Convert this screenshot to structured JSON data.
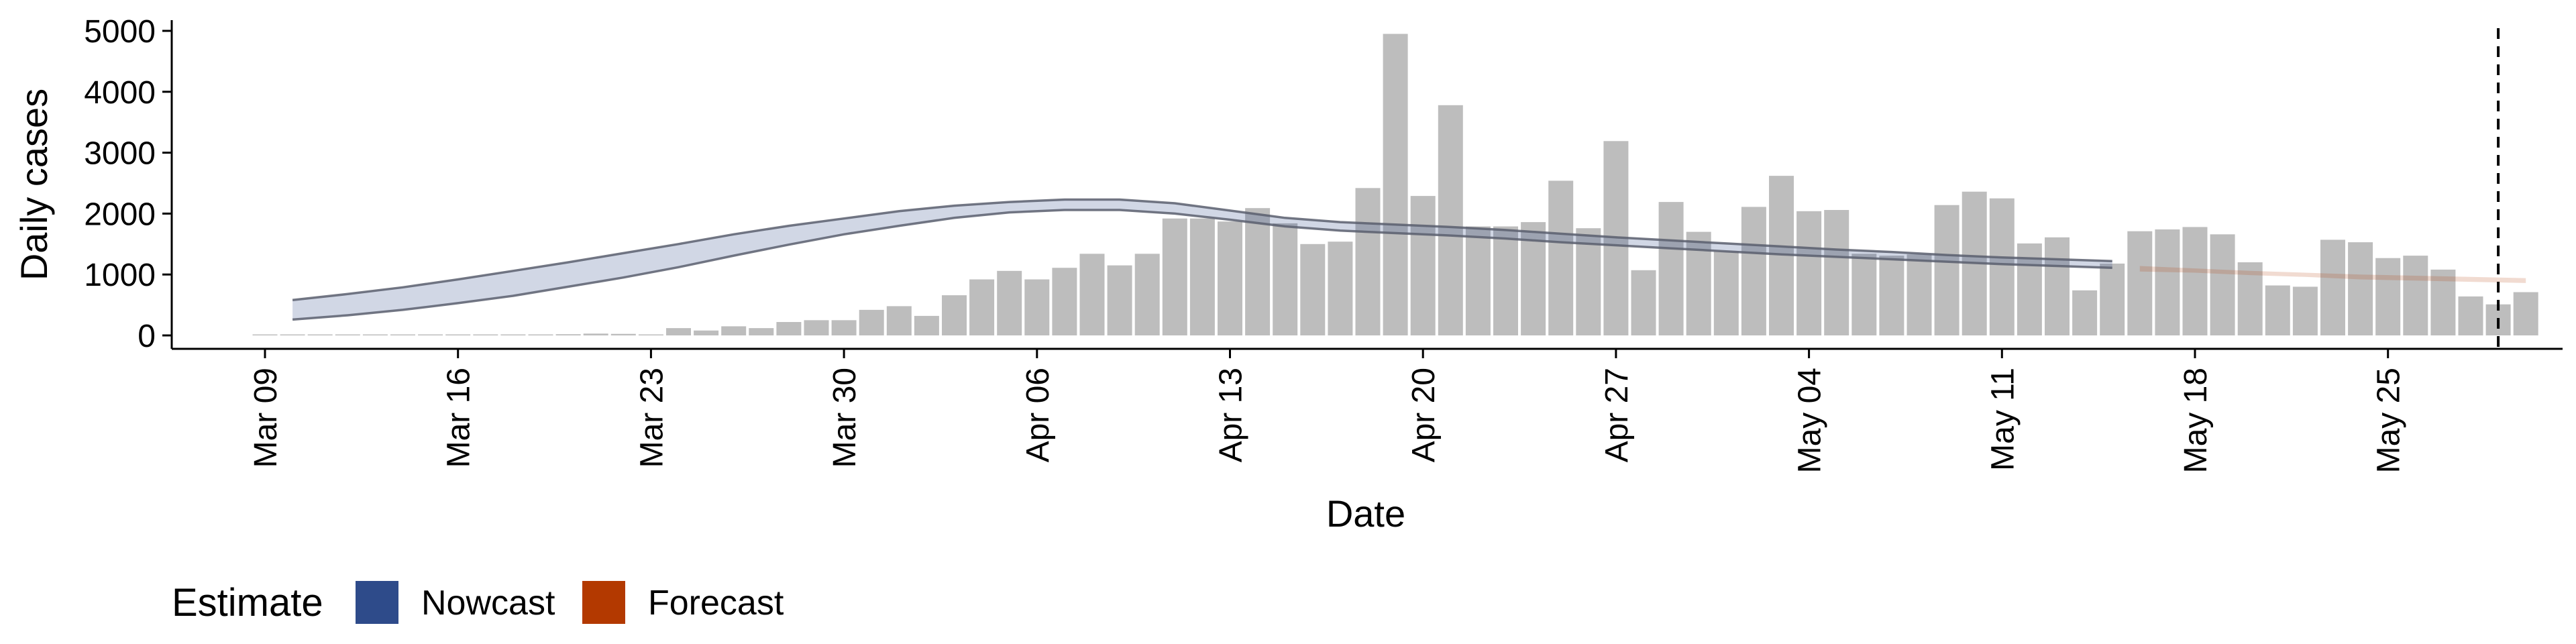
{
  "chart_data": {
    "type": "bar",
    "xlabel": "Date",
    "ylabel": "Daily cases",
    "ylim": [
      -200,
      5150
    ],
    "yticks": [
      0,
      1000,
      2000,
      3000,
      4000,
      5000
    ],
    "x_tick_labels": [
      "Mar 09",
      "Mar 16",
      "Mar 23",
      "Mar 30",
      "Apr 06",
      "Apr 13",
      "Apr 20",
      "Apr 27",
      "May 04",
      "May 11",
      "May 18",
      "May 25"
    ],
    "x_start": "Mar 09",
    "bars": {
      "name": "Daily cases",
      "color": "#bdbdbd",
      "values": [
        0,
        0,
        0,
        0,
        5,
        0,
        0,
        10,
        12,
        12,
        15,
        20,
        30,
        25,
        0,
        120,
        80,
        150,
        120,
        220,
        250,
        250,
        420,
        480,
        320,
        660,
        920,
        1060,
        920,
        1110,
        1340,
        1150,
        1340,
        1920,
        1920,
        1870,
        2090,
        1840,
        1500,
        1540,
        2420,
        4950,
        2290,
        3780,
        1790,
        1790,
        1860,
        2540,
        1760,
        3190,
        1070,
        2190,
        1700,
        1380,
        2110,
        2620,
        2040,
        2060,
        1340,
        1310,
        1330,
        2140,
        2360,
        2250,
        1510,
        1610,
        740,
        1180,
        1710,
        1740,
        1780,
        1660,
        1200,
        820,
        800,
        1570,
        1530,
        1270,
        1310,
        1080,
        640,
        510,
        710
      ]
    },
    "band_days": [
      1,
      3,
      5,
      7,
      9,
      11,
      13,
      15,
      17,
      19,
      21,
      23,
      25,
      27,
      29,
      31,
      33,
      35,
      37,
      39,
      41,
      43,
      45,
      47,
      49,
      51,
      53,
      55,
      57,
      59,
      61,
      63,
      65,
      67
    ],
    "nowcast": {
      "name": "Nowcast",
      "color": "#2e4b8a",
      "lower": [
        260,
        330,
        420,
        530,
        650,
        800,
        950,
        1120,
        1310,
        1490,
        1660,
        1800,
        1930,
        2020,
        2060,
        2060,
        2000,
        1900,
        1790,
        1720,
        1680,
        1640,
        1590,
        1530,
        1480,
        1430,
        1380,
        1330,
        1290,
        1250,
        1210,
        1170,
        1140,
        1110
      ],
      "upper": [
        580,
        680,
        790,
        920,
        1060,
        1200,
        1350,
        1500,
        1660,
        1800,
        1920,
        2040,
        2130,
        2190,
        2230,
        2230,
        2170,
        2050,
        1930,
        1860,
        1820,
        1780,
        1730,
        1670,
        1610,
        1560,
        1510,
        1460,
        1410,
        1370,
        1320,
        1280,
        1250,
        1220
      ]
    },
    "forecast": {
      "name": "Forecast",
      "color": "#b33900",
      "days": [
        68,
        70,
        72,
        74,
        76,
        78,
        80,
        82
      ],
      "lower": [
        1050,
        1030,
        990,
        960,
        920,
        900,
        880,
        860
      ],
      "upper": [
        1140,
        1100,
        1060,
        1030,
        1000,
        980,
        960,
        940
      ]
    },
    "vline_day": 81,
    "grid": false,
    "legend_position": "bottom-left",
    "legend_title": "Estimate",
    "legend_items": [
      {
        "label": "Nowcast",
        "color": "#2e4b8a"
      },
      {
        "label": "Forecast",
        "color": "#b33900"
      }
    ]
  }
}
